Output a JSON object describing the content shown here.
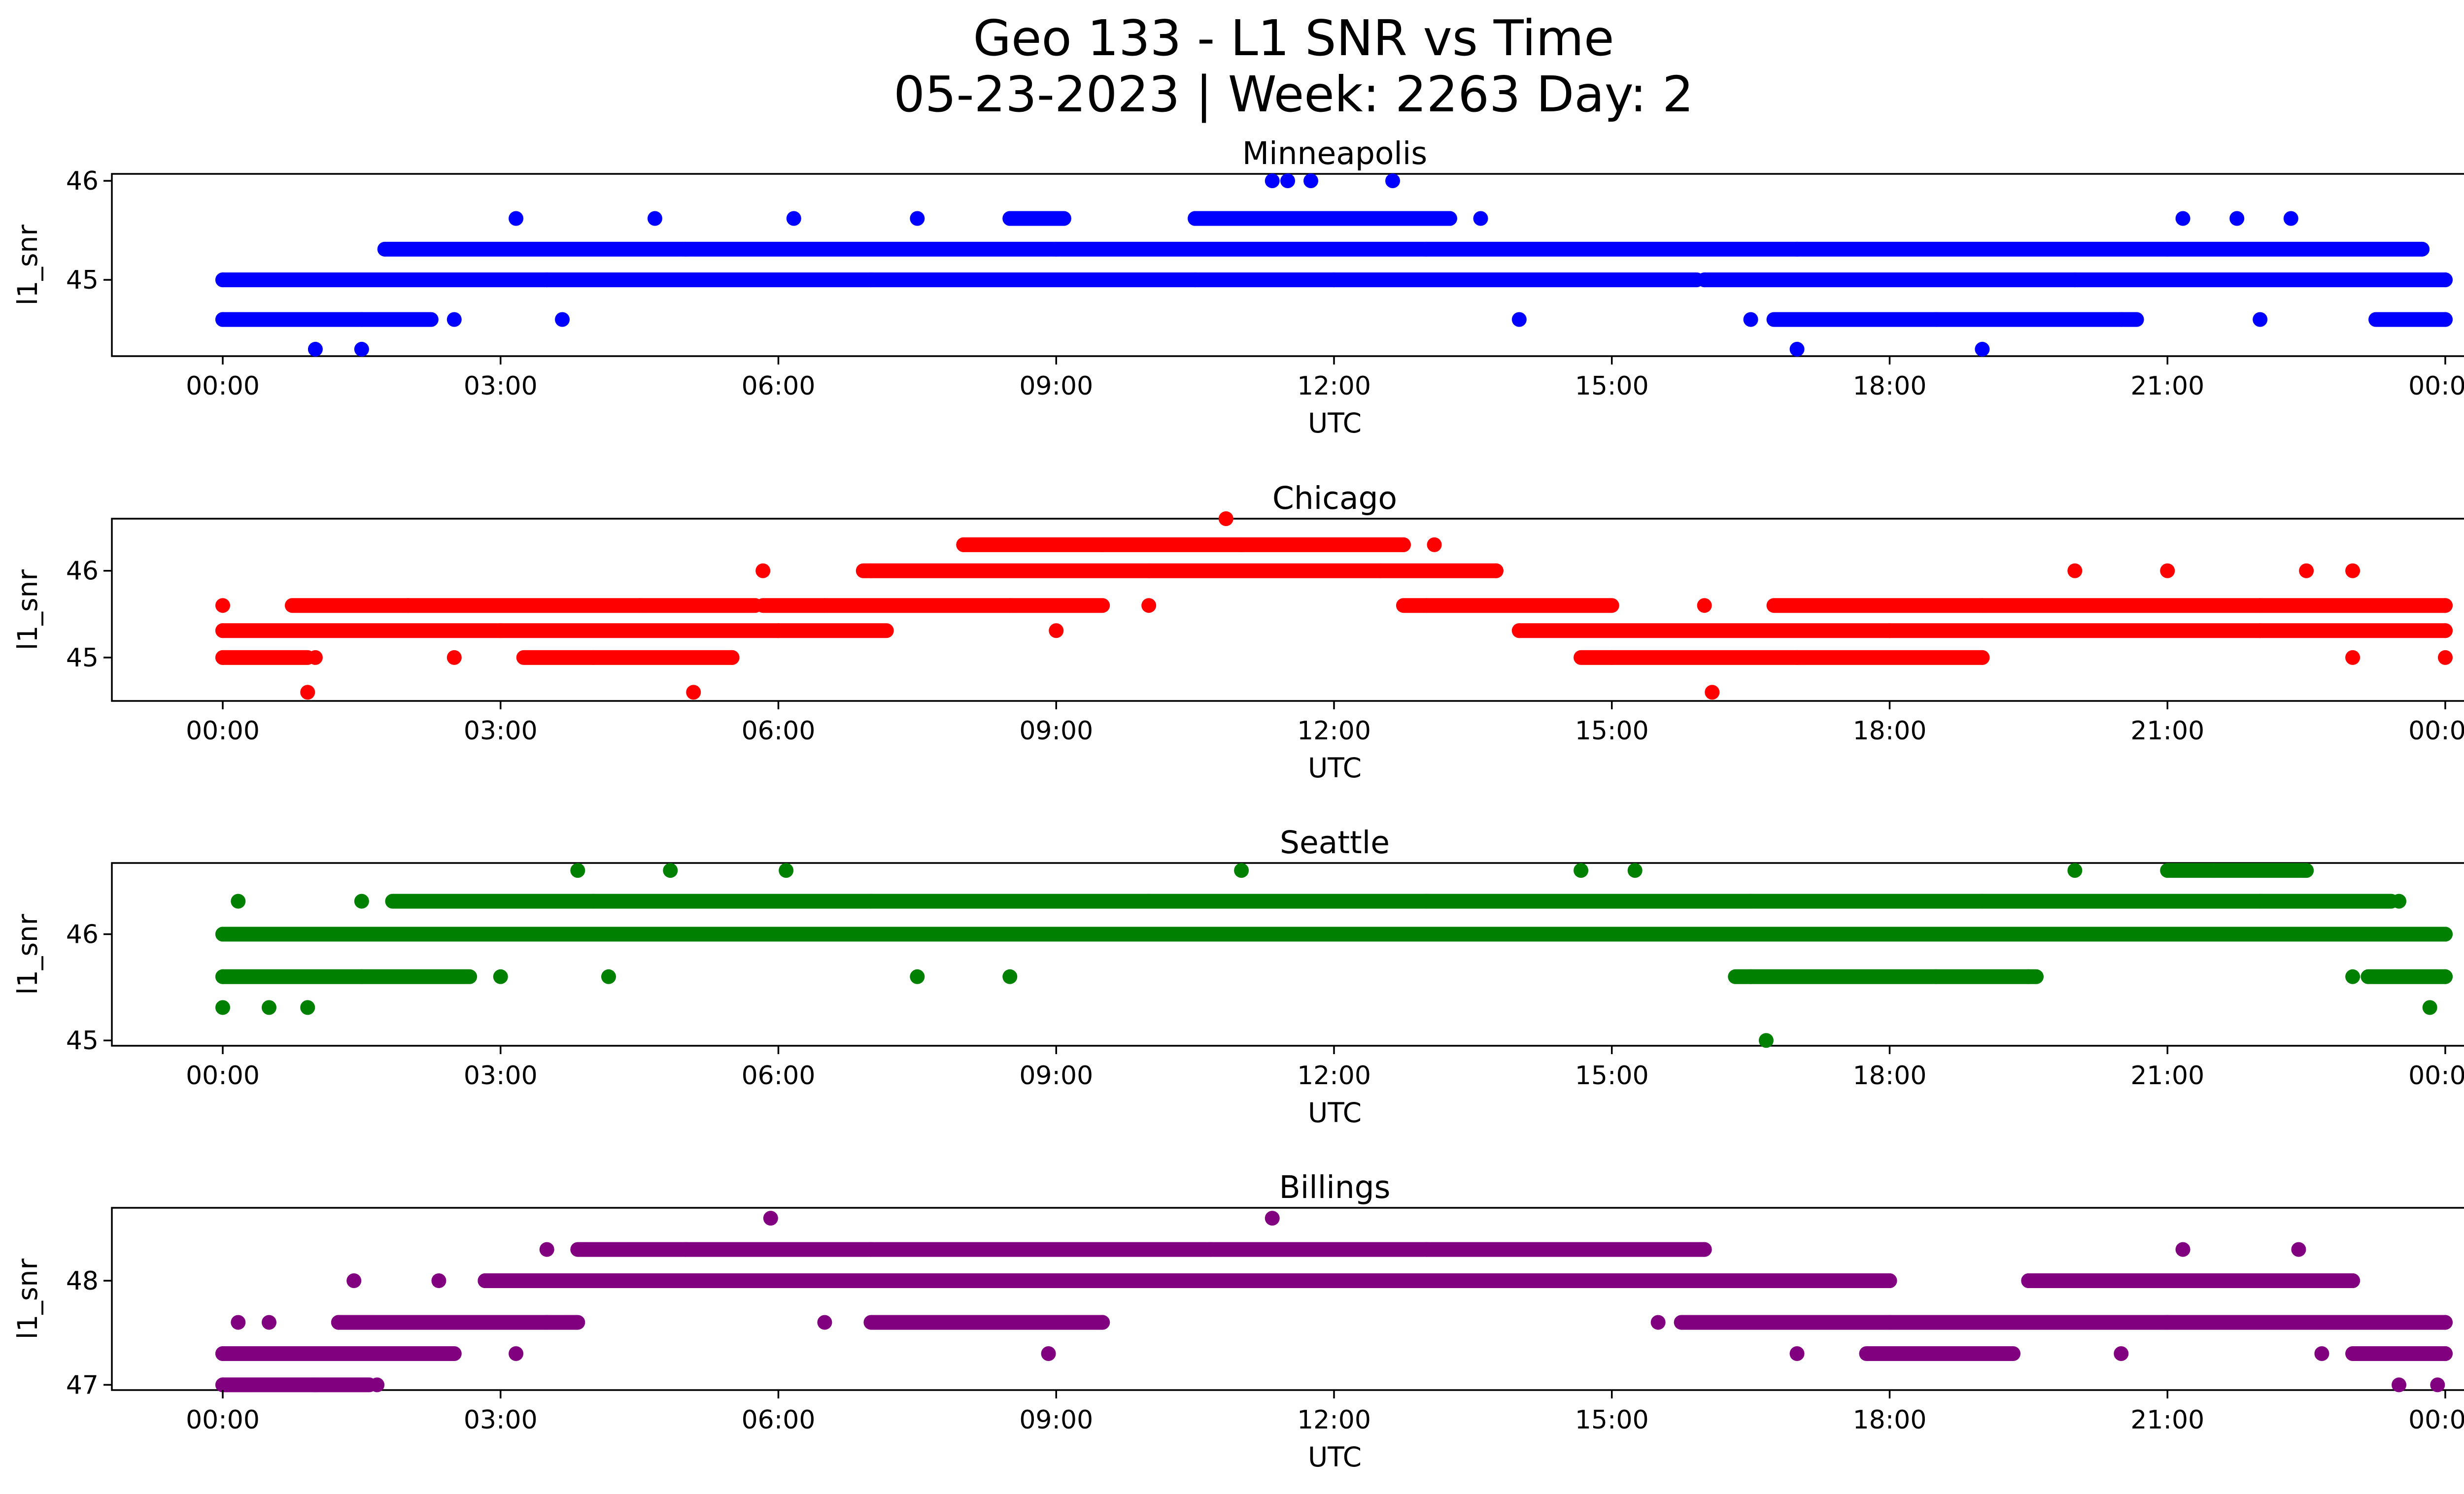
{
  "figure": {
    "title_line1": "Geo 133 - L1 SNR vs Time",
    "title_line2": "05-23-2023 | Week: 2263 Day: 2"
  },
  "chart_data": [
    {
      "type": "scatter",
      "title": "Minneapolis",
      "xlabel": "UTC",
      "ylabel": "l1_snr",
      "color": "#0000ff",
      "xlim": [
        "23:15",
        "24:00+00:25"
      ],
      "xticks": [
        "00:00",
        "03:00",
        "06:00",
        "09:00",
        "12:00",
        "15:00",
        "18:00",
        "21:00",
        "00:00"
      ],
      "ylim": [
        44.23,
        46.07
      ],
      "yticks": [
        45,
        46
      ],
      "series": [
        {
          "points": [
            {
              "x": "00:00",
              "y": 45.0
            },
            {
              "x": "03:30",
              "y": 45.0
            },
            {
              "x": "07:00",
              "y": 45.0
            },
            {
              "x": "10:30",
              "y": 45.0
            },
            {
              "x": "12:00",
              "y": 45.0
            },
            {
              "x": "16:00",
              "y": 45.0
            },
            {
              "x": "20:00",
              "y": 45.0
            },
            {
              "x": "24:00",
              "y": 45.0
            },
            {
              "x": "01:45",
              "y": 45.31
            },
            {
              "x": "05:00",
              "y": 45.31
            },
            {
              "x": "09:00",
              "y": 45.31
            },
            {
              "x": "13:00",
              "y": 45.31
            },
            {
              "x": "17:00",
              "y": 45.31
            },
            {
              "x": "21:00",
              "y": 45.31
            },
            {
              "x": "23:45",
              "y": 45.31
            },
            {
              "x": "00:00",
              "y": 44.6
            },
            {
              "x": "01:30",
              "y": 44.6
            },
            {
              "x": "02:30",
              "y": 44.6
            },
            {
              "x": "03:40",
              "y": 44.6
            },
            {
              "x": "14:00",
              "y": 44.6
            },
            {
              "x": "16:30",
              "y": 44.6
            },
            {
              "x": "18:30",
              "y": 44.6
            },
            {
              "x": "20:30",
              "y": 44.6
            },
            {
              "x": "22:00",
              "y": 44.6
            },
            {
              "x": "24:00",
              "y": 44.6
            },
            {
              "x": "03:10",
              "y": 45.62
            },
            {
              "x": "04:40",
              "y": 45.62
            },
            {
              "x": "06:10",
              "y": 45.62
            },
            {
              "x": "07:30",
              "y": 45.62
            },
            {
              "x": "08:30",
              "y": 45.62
            },
            {
              "x": "09:00",
              "y": 45.62
            },
            {
              "x": "10:30",
              "y": 45.62
            },
            {
              "x": "12:00",
              "y": 45.62
            },
            {
              "x": "13:15",
              "y": 45.62
            },
            {
              "x": "13:35",
              "y": 45.62
            },
            {
              "x": "21:10",
              "y": 45.62
            },
            {
              "x": "21:45",
              "y": 45.62
            },
            {
              "x": "22:20",
              "y": 45.62
            },
            {
              "x": "11:20",
              "y": 46.0
            },
            {
              "x": "11:30",
              "y": 46.0
            },
            {
              "x": "11:45",
              "y": 46.0
            },
            {
              "x": "12:38",
              "y": 46.0
            },
            {
              "x": "01:00",
              "y": 44.3
            },
            {
              "x": "01:30",
              "y": 44.3
            },
            {
              "x": "17:00",
              "y": 44.3
            },
            {
              "x": "19:00",
              "y": 44.3
            }
          ]
        }
      ]
    },
    {
      "type": "scatter",
      "title": "Chicago",
      "xlabel": "UTC",
      "ylabel": "l1_snr",
      "color": "#ff0000",
      "xlim": [
        "23:15",
        "24:00+00:25"
      ],
      "xticks": [
        "00:00",
        "03:00",
        "06:00",
        "09:00",
        "12:00",
        "15:00",
        "18:00",
        "21:00",
        "00:00"
      ],
      "ylim": [
        44.5,
        46.6
      ],
      "yticks": [
        45,
        46
      ],
      "series": [
        {
          "points": [
            {
              "x": "00:00",
              "y": 45.31
            },
            {
              "x": "03:00",
              "y": 45.31
            },
            {
              "x": "06:00",
              "y": 45.31
            },
            {
              "x": "09:00",
              "y": 45.31
            },
            {
              "x": "14:00",
              "y": 45.31
            },
            {
              "x": "18:00",
              "y": 45.31
            },
            {
              "x": "22:00",
              "y": 45.31
            },
            {
              "x": "24:00",
              "y": 45.31
            },
            {
              "x": "00:00",
              "y": 45.6
            },
            {
              "x": "02:00",
              "y": 45.6
            },
            {
              "x": "04:30",
              "y": 45.6
            },
            {
              "x": "06:30",
              "y": 45.6
            },
            {
              "x": "08:30",
              "y": 45.6
            },
            {
              "x": "10:00",
              "y": 45.6
            },
            {
              "x": "13:00",
              "y": 45.6
            },
            {
              "x": "16:00",
              "y": 45.6
            },
            {
              "x": "19:00",
              "y": 45.6
            },
            {
              "x": "22:00",
              "y": 45.6
            },
            {
              "x": "24:00",
              "y": 45.6
            },
            {
              "x": "00:00",
              "y": 45.0
            },
            {
              "x": "01:00",
              "y": 45.0
            },
            {
              "x": "02:30",
              "y": 45.0
            },
            {
              "x": "04:00",
              "y": 45.0
            },
            {
              "x": "05:30",
              "y": 45.0
            },
            {
              "x": "15:00",
              "y": 45.0
            },
            {
              "x": "17:00",
              "y": 45.0
            },
            {
              "x": "19:00",
              "y": 45.0
            },
            {
              "x": "23:00",
              "y": 45.0
            },
            {
              "x": "24:00",
              "y": 45.0
            },
            {
              "x": "05:50",
              "y": 46.0
            },
            {
              "x": "07:00",
              "y": 46.0
            },
            {
              "x": "10:00",
              "y": 46.0
            },
            {
              "x": "12:30",
              "y": 46.0
            },
            {
              "x": "13:45",
              "y": 46.0
            },
            {
              "x": "20:00",
              "y": 46.0
            },
            {
              "x": "21:00",
              "y": 46.0
            },
            {
              "x": "22:30",
              "y": 46.0
            },
            {
              "x": "23:00",
              "y": 46.0
            },
            {
              "x": "08:00",
              "y": 46.3
            },
            {
              "x": "09:30",
              "y": 46.3
            },
            {
              "x": "11:00",
              "y": 46.3
            },
            {
              "x": "12:45",
              "y": 46.3
            },
            {
              "x": "13:05",
              "y": 46.3
            },
            {
              "x": "10:50",
              "y": 46.6
            },
            {
              "x": "00:55",
              "y": 44.6
            },
            {
              "x": "05:05",
              "y": 44.6
            },
            {
              "x": "16:05",
              "y": 44.6
            }
          ]
        }
      ]
    },
    {
      "type": "scatter",
      "title": "Seattle",
      "xlabel": "UTC",
      "ylabel": "l1_snr",
      "color": "#008000",
      "xlim": [
        "23:15",
        "24:00+00:25"
      ],
      "xticks": [
        "00:00",
        "03:00",
        "06:00",
        "09:00",
        "12:00",
        "15:00",
        "18:00",
        "21:00",
        "00:00"
      ],
      "ylim": [
        44.95,
        46.67
      ],
      "yticks": [
        45,
        46
      ],
      "series": [
        {
          "points": [
            {
              "x": "00:00",
              "y": 46.0
            },
            {
              "x": "04:00",
              "y": 46.0
            },
            {
              "x": "08:00",
              "y": 46.0
            },
            {
              "x": "12:00",
              "y": 46.0
            },
            {
              "x": "16:00",
              "y": 46.0
            },
            {
              "x": "20:00",
              "y": 46.0
            },
            {
              "x": "24:00",
              "y": 46.0
            },
            {
              "x": "01:30",
              "y": 46.31
            },
            {
              "x": "04:00",
              "y": 46.31
            },
            {
              "x": "07:00",
              "y": 46.31
            },
            {
              "x": "10:00",
              "y": 46.31
            },
            {
              "x": "13:00",
              "y": 46.31
            },
            {
              "x": "16:30",
              "y": 46.31
            },
            {
              "x": "19:00",
              "y": 46.31
            },
            {
              "x": "22:00",
              "y": 46.31
            },
            {
              "x": "23:30",
              "y": 46.31
            },
            {
              "x": "00:10",
              "y": 46.31
            },
            {
              "x": "00:00",
              "y": 45.6
            },
            {
              "x": "01:30",
              "y": 45.6
            },
            {
              "x": "03:00",
              "y": 45.6
            },
            {
              "x": "04:10",
              "y": 45.6
            },
            {
              "x": "07:30",
              "y": 45.6
            },
            {
              "x": "08:30",
              "y": 45.6
            },
            {
              "x": "16:30",
              "y": 45.6
            },
            {
              "x": "18:30",
              "y": 45.6
            },
            {
              "x": "19:30",
              "y": 45.6
            },
            {
              "x": "23:00",
              "y": 45.6
            },
            {
              "x": "24:00",
              "y": 45.6
            },
            {
              "x": "00:00",
              "y": 45.31
            },
            {
              "x": "00:30",
              "y": 45.31
            },
            {
              "x": "00:55",
              "y": 45.31
            },
            {
              "x": "23:50",
              "y": 45.31
            },
            {
              "x": "03:50",
              "y": 46.6
            },
            {
              "x": "04:50",
              "y": 46.6
            },
            {
              "x": "06:05",
              "y": 46.6
            },
            {
              "x": "11:00",
              "y": 46.6
            },
            {
              "x": "14:40",
              "y": 46.6
            },
            {
              "x": "15:15",
              "y": 46.6
            },
            {
              "x": "20:00",
              "y": 46.6
            },
            {
              "x": "21:30",
              "y": 46.6
            },
            {
              "x": "22:30",
              "y": 46.6
            },
            {
              "x": "16:40",
              "y": 45.0
            }
          ]
        }
      ]
    },
    {
      "type": "scatter",
      "title": "Billings",
      "xlabel": "UTC",
      "ylabel": "l1_snr",
      "color": "#800080",
      "xlim": [
        "23:15",
        "24:00+00:25"
      ],
      "xticks": [
        "00:00",
        "03:00",
        "06:00",
        "09:00",
        "12:00",
        "15:00",
        "18:00",
        "21:00",
        "00:00"
      ],
      "ylim": [
        46.95,
        48.7
      ],
      "yticks": [
        47,
        48
      ],
      "series": [
        {
          "points": [
            {
              "x": "02:50",
              "y": 48.0
            },
            {
              "x": "06:00",
              "y": 48.0
            },
            {
              "x": "09:00",
              "y": 48.0
            },
            {
              "x": "12:00",
              "y": 48.0
            },
            {
              "x": "15:00",
              "y": 48.0
            },
            {
              "x": "18:00",
              "y": 48.0
            },
            {
              "x": "19:30",
              "y": 48.0
            },
            {
              "x": "22:00",
              "y": 48.0
            },
            {
              "x": "23:00",
              "y": 48.0
            },
            {
              "x": "01:25",
              "y": 48.0
            },
            {
              "x": "02:20",
              "y": 48.0
            },
            {
              "x": "01:15",
              "y": 47.6
            },
            {
              "x": "03:30",
              "y": 47.6
            },
            {
              "x": "06:30",
              "y": 47.6
            },
            {
              "x": "09:30",
              "y": 47.6
            },
            {
              "x": "15:30",
              "y": 47.6
            },
            {
              "x": "18:00",
              "y": 47.6
            },
            {
              "x": "21:00",
              "y": 47.6
            },
            {
              "x": "24:00",
              "y": 47.6
            },
            {
              "x": "00:10",
              "y": 47.6
            },
            {
              "x": "00:30",
              "y": 47.6
            },
            {
              "x": "00:00",
              "y": 47.3
            },
            {
              "x": "01:30",
              "y": 47.3
            },
            {
              "x": "03:10",
              "y": 47.3
            },
            {
              "x": "08:55",
              "y": 47.3
            },
            {
              "x": "17:00",
              "y": 47.3
            },
            {
              "x": "18:30",
              "y": 47.3
            },
            {
              "x": "20:30",
              "y": 47.3
            },
            {
              "x": "22:40",
              "y": 47.3
            },
            {
              "x": "24:00",
              "y": 47.3
            },
            {
              "x": "00:00",
              "y": 47.0
            },
            {
              "x": "01:00",
              "y": 47.0
            },
            {
              "x": "01:40",
              "y": 47.0
            },
            {
              "x": "23:30",
              "y": 47.0
            },
            {
              "x": "23:55",
              "y": 47.0
            },
            {
              "x": "03:30",
              "y": 48.3
            },
            {
              "x": "05:00",
              "y": 48.3
            },
            {
              "x": "07:00",
              "y": 48.3
            },
            {
              "x": "10:40",
              "y": 48.3
            },
            {
              "x": "13:00",
              "y": 48.3
            },
            {
              "x": "16:00",
              "y": 48.3
            },
            {
              "x": "21:10",
              "y": 48.3
            },
            {
              "x": "22:25",
              "y": 48.3
            },
            {
              "x": "05:55",
              "y": 48.6
            },
            {
              "x": "11:20",
              "y": 48.6
            }
          ]
        }
      ]
    }
  ]
}
